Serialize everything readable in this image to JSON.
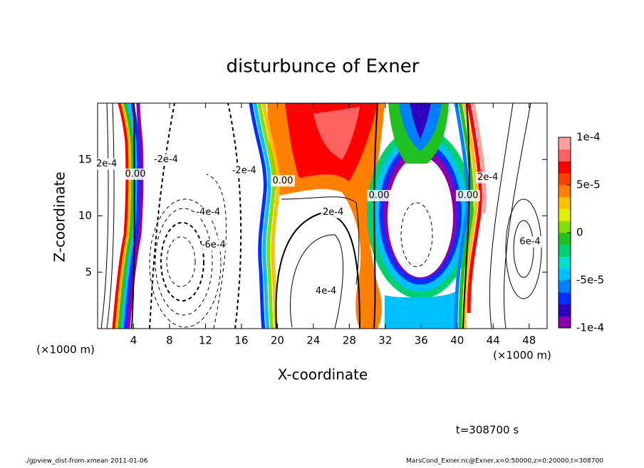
{
  "chart_data": {
    "type": "contour",
    "title": "disturbunce of Exner",
    "x_label": "X-coordinate",
    "y_label": "Z-coordinate",
    "x_unit": "(×1000 m)",
    "y_unit": "(×1000 m)",
    "xlim": [
      0,
      50
    ],
    "ylim": [
      0,
      20
    ],
    "xticks": [
      4,
      8,
      12,
      16,
      20,
      24,
      28,
      32,
      36,
      40,
      44,
      48
    ],
    "yticks": [
      5,
      10,
      15
    ],
    "colorbar": {
      "lim": [
        -0.0001,
        0.0001
      ],
      "ticks": [
        {
          "value": -0.0001,
          "label": "-1e-4"
        },
        {
          "value": -5e-05,
          "label": "-5e-5"
        },
        0,
        {
          "value": 5e-05,
          "label": "5e-5"
        },
        {
          "value": 0.0001,
          "label": "1e-4"
        }
      ],
      "colors": [
        "#8a00b0",
        "#3000c0",
        "#0030ff",
        "#0080ff",
        "#00c0ff",
        "#00e0d0",
        "#00d070",
        "#20c020",
        "#80e000",
        "#e0f000",
        "#ffc000",
        "#ff8000",
        "#ff4000",
        "#ff0000",
        "#ff6060",
        "#ffa0a0"
      ]
    },
    "contour_labels": [
      {
        "label": "2e-4",
        "x": 1.0,
        "z": 14.6
      },
      {
        "label": "0.00",
        "x": 4.2,
        "z": 13.7
      },
      {
        "label": "-2e-4",
        "x": 7.6,
        "z": 15.0
      },
      {
        "label": "-4e-4",
        "x": 12.3,
        "z": 10.3
      },
      {
        "label": "-6e-4",
        "x": 12.9,
        "z": 7.4
      },
      {
        "label": "-2e-4",
        "x": 16.3,
        "z": 14.0
      },
      {
        "label": "0.00",
        "x": 20.6,
        "z": 13.1
      },
      {
        "label": "2e-4",
        "x": 26.2,
        "z": 10.3
      },
      {
        "label": "4e-4",
        "x": 25.4,
        "z": 3.3
      },
      {
        "label": "0.00",
        "x": 31.3,
        "z": 11.8
      },
      {
        "label": "0.00",
        "x": 41.2,
        "z": 11.8
      },
      {
        "label": "2e-4",
        "x": 43.4,
        "z": 13.4
      },
      {
        "label": "6e-4",
        "x": 48.1,
        "z": 7.7
      }
    ],
    "time_label": "t=308700 s",
    "footer_left": "./gpview_dist-from-xmean  2011-01-06",
    "footer_right": "MarsCond_Exner.nc@Exner,x=0:50000,z=0:20000,t=308700"
  }
}
